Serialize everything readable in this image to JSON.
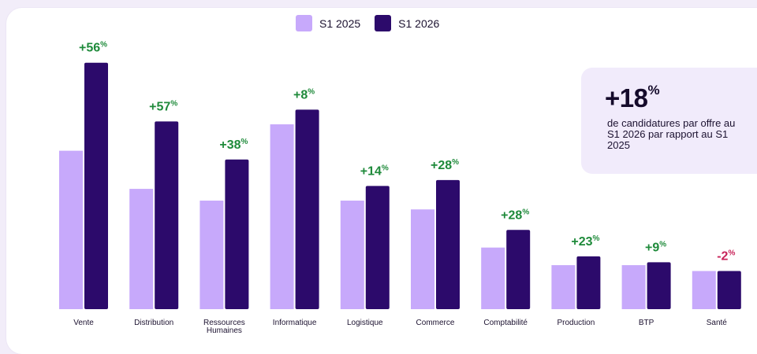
{
  "chart_data": {
    "type": "bar",
    "categories": [
      "Vente",
      "Distribution",
      "Ressources Humaines",
      "Informatique",
      "Logistique",
      "Commerce",
      "Comptabilité",
      "Production",
      "BTP",
      "Santé"
    ],
    "series": [
      {
        "name": "S1 2025",
        "values": [
          54,
          41,
          37,
          63,
          37,
          34,
          21,
          15,
          15,
          13
        ],
        "color": "#c7a9fb"
      },
      {
        "name": "S1 2026",
        "values": [
          84,
          64,
          51,
          68,
          42,
          44,
          27,
          18,
          16,
          13
        ],
        "color": "#2c0a6b"
      }
    ],
    "labels": [
      "+56",
      "+57",
      "+38",
      "+8",
      "+14",
      "+28",
      "+28",
      "+23",
      "+9",
      "-2"
    ],
    "label_unit": "%",
    "positive_color": "#1e8a3a",
    "negative_color": "#c8245a",
    "ylim": [
      0,
      85
    ],
    "grid": false,
    "legend_position": "top-center",
    "title": "",
    "xlabel": "",
    "ylabel": ""
  },
  "callout": {
    "value": "+18",
    "unit": "%",
    "text": "de candidatures par offre au S1 2026 par rapport au S1 2025"
  }
}
